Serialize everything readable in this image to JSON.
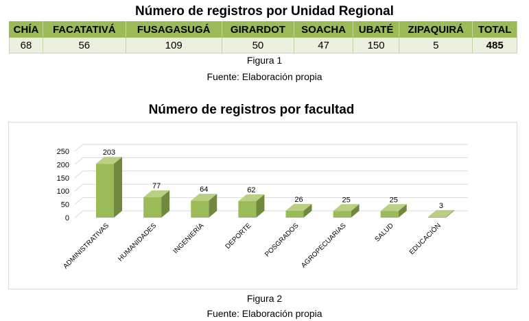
{
  "table": {
    "title": "Número de registros por Unidad Regional",
    "headers": [
      "CHÍA",
      "FACATATIVÁ",
      "FUSAGASUGÁ",
      "GIRARDOT",
      "SOACHA",
      "UBATÉ",
      "ZIPAQUIRÁ",
      "TOTAL"
    ],
    "values": [
      "68",
      "56",
      "109",
      "50",
      "47",
      "150",
      "5",
      "485"
    ],
    "caption": "Figura 1",
    "source": "Fuente: Elaboración propia"
  },
  "chart_data": {
    "type": "bar",
    "title": "Número de registros por facultad",
    "categories": [
      "ADMINISTRATIVAS",
      "HUMANIDADES",
      "INGENIERÍA",
      "DEPORTE",
      "POSGRADOS",
      "AGROPECUARIAS",
      "SALUD",
      "EDUCACIÓN"
    ],
    "values": [
      203,
      77,
      64,
      62,
      26,
      25,
      25,
      3
    ],
    "ylim": [
      0,
      250
    ],
    "yticks": [
      "0",
      "50",
      "100",
      "150",
      "200",
      "250"
    ],
    "grid": true,
    "colors": {
      "front": "#9bbb59",
      "side": "#71893f",
      "top": "#b9cf84",
      "grid": "#d9d9d9"
    }
  },
  "figure2": {
    "caption": "Figura 2",
    "source": "Fuente: Elaboración propia"
  }
}
